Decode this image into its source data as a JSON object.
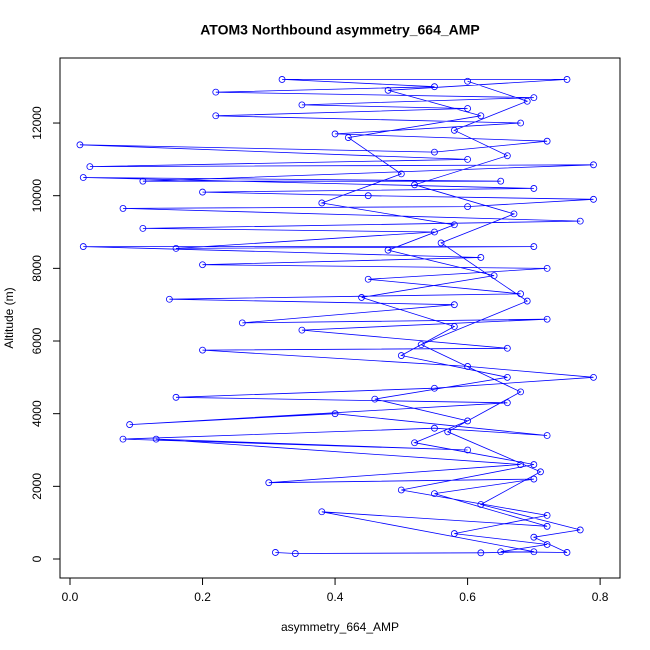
{
  "chart_data": {
    "type": "line",
    "markers": "open-circle",
    "title": "ATOM3 Northbound asymmetry_664_AMP",
    "x_label": "asymmetry_664_AMP",
    "y_label": "Altitude (m)",
    "color": "#0000ff",
    "xlim": [
      -0.0151,
      0.83
    ],
    "ylim": [
      -523,
      13790
    ],
    "xticks": [
      {
        "value": 0,
        "label": "0.0"
      },
      0.2,
      0.4,
      0.6,
      0.8
    ],
    "yticks": [
      0,
      2000,
      4000,
      6000,
      8000,
      10000,
      12000
    ],
    "x": [
      0.31,
      0.34,
      0.62,
      0.7,
      0.38,
      0.72,
      0.55,
      0.7,
      0.3,
      0.68,
      0.13,
      0.6,
      0.08,
      0.55,
      0.72,
      0.4,
      0.09,
      0.66,
      0.16,
      0.55,
      0.79,
      0.6,
      0.2,
      0.66,
      0.35,
      0.72,
      0.26,
      0.58,
      0.15,
      0.68,
      0.45,
      0.72,
      0.2,
      0.62,
      0.02,
      0.7,
      0.16,
      0.55,
      0.11,
      0.77,
      0.08,
      0.6,
      0.79,
      0.45,
      0.2,
      0.7,
      0.02,
      0.65,
      0.11,
      0.79,
      0.03,
      0.6,
      0.015,
      0.55,
      0.72,
      0.4,
      0.68,
      0.22,
      0.6,
      0.35,
      0.7,
      0.22,
      0.55,
      0.32,
      0.75,
      0.48,
      0.62,
      0.42,
      0.5,
      0.38,
      0.58,
      0.48,
      0.64,
      0.44,
      0.58,
      0.5,
      0.66,
      0.46,
      0.6,
      0.52,
      0.7,
      0.5,
      0.72,
      0.58,
      0.72,
      0.65,
      0.75,
      0.7,
      0.77,
      0.62,
      0.71,
      0.57,
      0.68,
      0.53,
      0.69,
      0.56,
      0.67,
      0.52,
      0.66,
      0.58,
      0.69,
      0.6
    ],
    "values": [
      180,
      150,
      170,
      200,
      1300,
      900,
      1800,
      2200,
      2100,
      2600,
      3300,
      3000,
      3300,
      3600,
      3400,
      4000,
      3700,
      4300,
      4450,
      4700,
      5000,
      5300,
      5750,
      5800,
      6300,
      6600,
      6500,
      7000,
      7150,
      7300,
      7700,
      8000,
      8100,
      8300,
      8600,
      8600,
      8550,
      9000,
      9100,
      9300,
      9650,
      9700,
      9900,
      10000,
      10100,
      10200,
      10500,
      10400,
      10400,
      10850,
      10800,
      11000,
      11400,
      11200,
      11500,
      11700,
      12000,
      12200,
      12400,
      12500,
      12700,
      12850,
      13000,
      13200,
      13200,
      12900,
      12200,
      11600,
      10600,
      9800,
      9200,
      8500,
      7800,
      7200,
      6400,
      5600,
      5000,
      4400,
      3800,
      3200,
      2600,
      1900,
      1200,
      700,
      400,
      200,
      180,
      600,
      800,
      1500,
      2400,
      3500,
      4600,
      5900,
      7100,
      8700,
      9500,
      10300,
      11100,
      11800,
      12600,
      13150
    ]
  }
}
